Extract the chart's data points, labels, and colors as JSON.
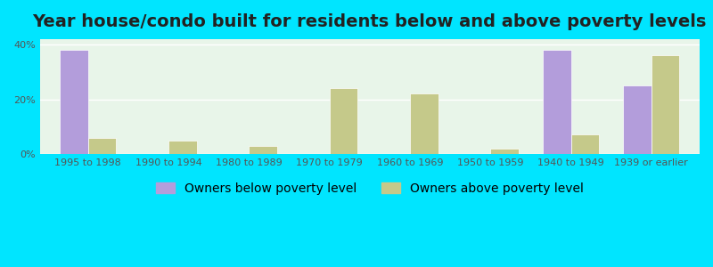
{
  "title": "Year house/condo built for residents below and above poverty levels",
  "categories": [
    "1995 to 1998",
    "1990 to 1994",
    "1980 to 1989",
    "1970 to 1979",
    "1960 to 1969",
    "1950 to 1959",
    "1940 to 1949",
    "1939 or earlier"
  ],
  "below_poverty": [
    38,
    0,
    0,
    0,
    0,
    0,
    38,
    25
  ],
  "above_poverty": [
    6,
    5,
    3,
    24,
    22,
    2,
    7,
    36
  ],
  "below_color": "#b39ddb",
  "above_color": "#c5c98a",
  "background_color": "#00e5ff",
  "plot_bg_start": "#e8f5e9",
  "plot_bg_end": "#ffffff",
  "ylabel_ticks": [
    "0%",
    "20%",
    "40%"
  ],
  "yticks": [
    0,
    20,
    40
  ],
  "ylim": [
    0,
    42
  ],
  "legend_below": "Owners below poverty level",
  "legend_above": "Owners above poverty level",
  "bar_width": 0.35,
  "title_fontsize": 14,
  "tick_fontsize": 8,
  "legend_fontsize": 10
}
